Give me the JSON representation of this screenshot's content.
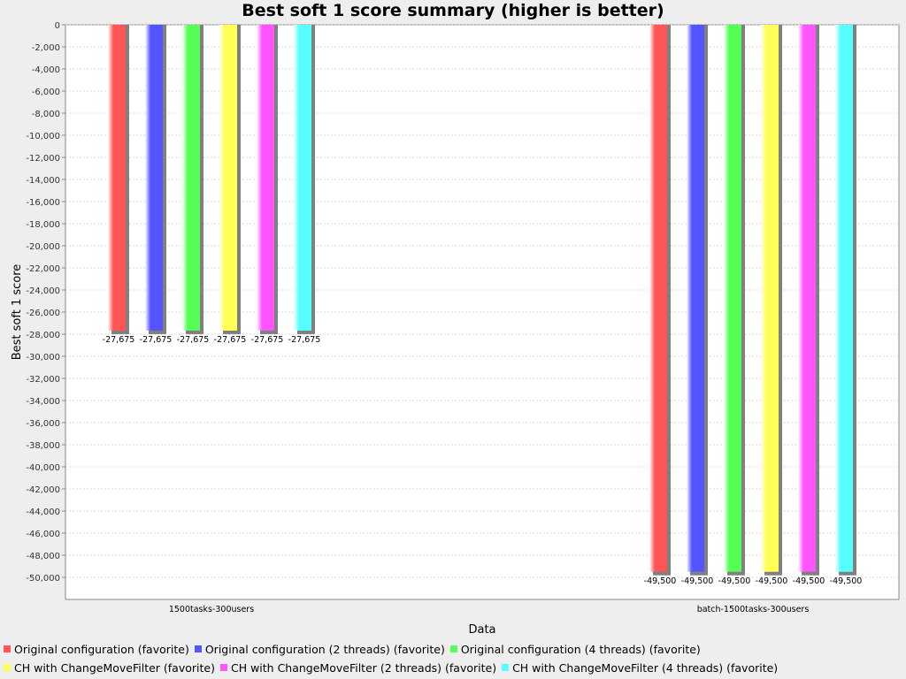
{
  "chart_data": {
    "type": "bar",
    "title": "Best soft 1 score summary (higher is better)",
    "xlabel": "Data",
    "ylabel": "Best soft 1 score",
    "categories": [
      "1500tasks-300users",
      "batch-1500tasks-300users"
    ],
    "ylim": [
      -52000,
      0
    ],
    "yticks": [
      0,
      -2000,
      -4000,
      -6000,
      -8000,
      -10000,
      -12000,
      -14000,
      -16000,
      -18000,
      -20000,
      -22000,
      -24000,
      -26000,
      -28000,
      -30000,
      -32000,
      -34000,
      -36000,
      -38000,
      -40000,
      -42000,
      -44000,
      -46000,
      -48000,
      -50000
    ],
    "ytick_labels": [
      "0",
      "-2,000",
      "-4,000",
      "-6,000",
      "-8,000",
      "-10,000",
      "-12,000",
      "-14,000",
      "-16,000",
      "-18,000",
      "-20,000",
      "-22,000",
      "-24,000",
      "-26,000",
      "-28,000",
      "-30,000",
      "-32,000",
      "-34,000",
      "-36,000",
      "-38,000",
      "-40,000",
      "-42,000",
      "-44,000",
      "-46,000",
      "-48,000",
      "-50,000"
    ],
    "grid": true,
    "legend_position": "bottom",
    "series": [
      {
        "name": "Original configuration (favorite)",
        "color": "#ff5555",
        "values": [
          -27675,
          -49500
        ],
        "labels": [
          "-27,675",
          "-49,500"
        ]
      },
      {
        "name": "Original configuration (2 threads) (favorite)",
        "color": "#5555ff",
        "values": [
          -27675,
          -49500
        ],
        "labels": [
          "-27,675",
          "-49,500"
        ]
      },
      {
        "name": "Original configuration (4 threads) (favorite)",
        "color": "#55ff55",
        "values": [
          -27675,
          -49500
        ],
        "labels": [
          "-27,675",
          "-49,500"
        ]
      },
      {
        "name": "CH with ChangeMoveFilter (favorite)",
        "color": "#ffff55",
        "values": [
          -27675,
          -49500
        ],
        "labels": [
          "-27,675",
          "-49,500"
        ]
      },
      {
        "name": "CH with ChangeMoveFilter (2 threads) (favorite)",
        "color": "#ff55ff",
        "values": [
          -27675,
          -49500
        ],
        "labels": [
          "-27,675",
          "-49,500"
        ]
      },
      {
        "name": "CH with ChangeMoveFilter (4 threads) (favorite)",
        "color": "#55ffff",
        "values": [
          -27675,
          -49500
        ],
        "labels": [
          "-27,675",
          "-49,500"
        ]
      }
    ]
  }
}
